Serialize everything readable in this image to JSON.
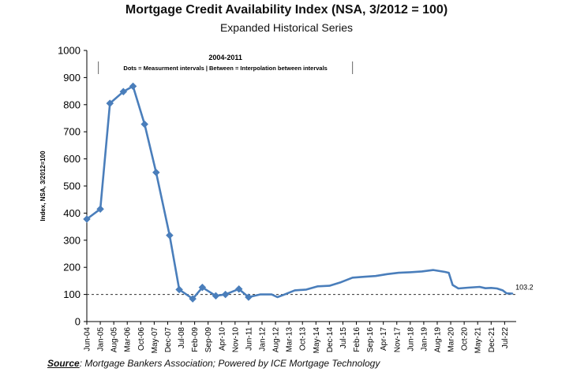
{
  "chart_data": {
    "type": "line",
    "title": "Mortgage Credit Availability Index (NSA, 3/2012 = 100)",
    "subtitle": "Expanded Historical Series",
    "ylabel": "Index, NSA, 3/2012=100",
    "xlabel": "",
    "ylim": [
      0,
      1000
    ],
    "yticks": [
      0,
      100,
      200,
      300,
      400,
      500,
      600,
      700,
      800,
      900,
      1000
    ],
    "xticks": [
      "Jun-04",
      "Jan-05",
      "Aug-05",
      "Mar-06",
      "Oct-06",
      "May-07",
      "Dec-07",
      "Jul-08",
      "Feb-09",
      "Sep-09",
      "Apr-10",
      "Nov-10",
      "Jun-11",
      "Jan-12",
      "Aug-12",
      "Mar-13",
      "Oct-13",
      "May-14",
      "Dec-14",
      "Jul-15",
      "Feb-16",
      "Sep-16",
      "Apr-17",
      "Nov-17",
      "Jun-18",
      "Jan-19",
      "Aug-19",
      "Mar-20",
      "Oct-20",
      "May-21",
      "Dec-21",
      "Jul-22"
    ],
    "reference_line": 100,
    "end_label": "103.2",
    "annotation_title": "2004-2011",
    "annotation_text": "Dots = Measurment intervals  |  Between = Interpolation between intervals",
    "series": [
      {
        "color": "#4a7ebb",
        "markers": [
          [
            "Jun-04",
            378
          ],
          [
            "Jan-05",
            415
          ],
          [
            "Jun-05",
            805
          ],
          [
            "Jan-06",
            848
          ],
          [
            "Jun-06",
            868
          ],
          [
            "Dec-06",
            728
          ],
          [
            "Jun-07",
            550
          ],
          [
            "Jan-08",
            318
          ],
          [
            "Jun-08",
            118
          ],
          [
            "Jan-09",
            84
          ],
          [
            "Jun-09",
            126
          ],
          [
            "Jan-10",
            95
          ],
          [
            "Jun-10",
            100
          ],
          [
            "Jan-11",
            120
          ],
          [
            "Jun-11",
            90
          ]
        ],
        "points": [
          [
            "Jun-04",
            378
          ],
          [
            "Jan-05",
            415
          ],
          [
            "Jun-05",
            805
          ],
          [
            "Jan-06",
            848
          ],
          [
            "Jun-06",
            868
          ],
          [
            "Dec-06",
            728
          ],
          [
            "Jun-07",
            550
          ],
          [
            "Jan-08",
            318
          ],
          [
            "Jun-08",
            118
          ],
          [
            "Jan-09",
            84
          ],
          [
            "Jun-09",
            126
          ],
          [
            "Jan-10",
            95
          ],
          [
            "Jun-10",
            100
          ],
          [
            "Jan-11",
            120
          ],
          [
            "Jun-11",
            90
          ],
          [
            "Dec-11",
            100
          ],
          [
            "Jun-12",
            100
          ],
          [
            "Sep-12",
            90
          ],
          [
            "Dec-12",
            98
          ],
          [
            "Jun-13",
            115
          ],
          [
            "Dec-13",
            118
          ],
          [
            "Jun-14",
            130
          ],
          [
            "Dec-14",
            132
          ],
          [
            "Jun-15",
            145
          ],
          [
            "Dec-15",
            162
          ],
          [
            "Jun-16",
            165
          ],
          [
            "Dec-16",
            168
          ],
          [
            "Jun-17",
            175
          ],
          [
            "Dec-17",
            180
          ],
          [
            "Jun-18",
            182
          ],
          [
            "Dec-18",
            185
          ],
          [
            "Jun-19",
            190
          ],
          [
            "Dec-19",
            183
          ],
          [
            "Feb-20",
            180
          ],
          [
            "Apr-20",
            135
          ],
          [
            "Jul-20",
            122
          ],
          [
            "Dec-20",
            125
          ],
          [
            "Jun-21",
            128
          ],
          [
            "Sep-21",
            123
          ],
          [
            "Dec-21",
            124
          ],
          [
            "Mar-22",
            122
          ],
          [
            "Jun-22",
            115
          ],
          [
            "Aug-22",
            104
          ],
          [
            "Nov-22",
            103.2
          ]
        ]
      }
    ]
  },
  "source": {
    "label": "Source",
    "text": ": Mortgage Bankers Association; Powered by ICE Mortgage Technology"
  }
}
